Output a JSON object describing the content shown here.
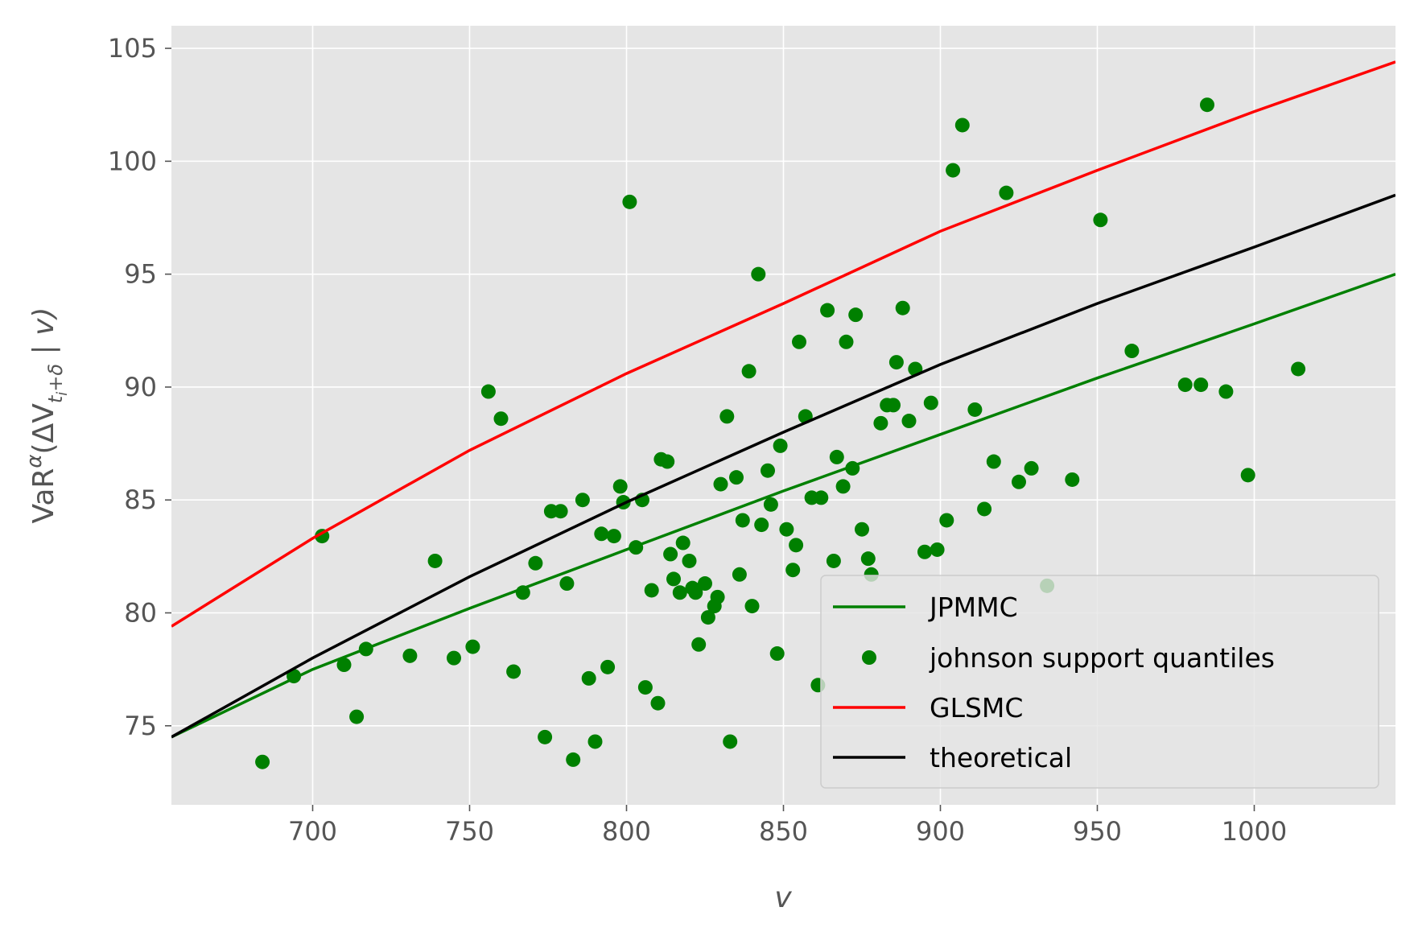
{
  "chart_data": {
    "type": "scatter",
    "xlabel": "v",
    "ylabel_parts": {
      "prefix": "VaR",
      "sup": "α",
      "open": "(ΔV",
      "sub_t": "t",
      "sub_i": "i",
      "sub_rest": "+δ",
      "close": " | v)"
    },
    "xlim": [
      655,
      1045
    ],
    "ylim": [
      71.5,
      106
    ],
    "xticks": [
      700,
      750,
      800,
      850,
      900,
      950,
      1000
    ],
    "yticks": [
      75,
      80,
      85,
      90,
      95,
      100,
      105
    ],
    "grid": true,
    "legend_position": "lower-right",
    "colors": {
      "jpmmc": "#008000",
      "scatter": "#008000",
      "glsmc": "#ff0000",
      "theoretical": "#000000"
    },
    "series": [
      {
        "name": "JPMMC",
        "kind": "line",
        "color": "#008000",
        "x": [
          655,
          700,
          750,
          800,
          850,
          900,
          950,
          1000,
          1045
        ],
        "y": [
          74.5,
          77.5,
          80.2,
          82.8,
          85.4,
          87.9,
          90.4,
          92.8,
          95.0
        ]
      },
      {
        "name": "johnson support quantiles",
        "kind": "scatter",
        "color": "#008000",
        "points": [
          [
            684,
            73.4
          ],
          [
            694,
            77.2
          ],
          [
            703,
            83.4
          ],
          [
            710,
            77.7
          ],
          [
            714,
            75.4
          ],
          [
            717,
            78.4
          ],
          [
            731,
            78.1
          ],
          [
            739,
            82.3
          ],
          [
            745,
            78.0
          ],
          [
            751,
            78.5
          ],
          [
            756,
            89.8
          ],
          [
            760,
            88.6
          ],
          [
            764,
            77.4
          ],
          [
            767,
            80.9
          ],
          [
            771,
            82.2
          ],
          [
            774,
            74.5
          ],
          [
            776,
            84.5
          ],
          [
            779,
            84.5
          ],
          [
            781,
            81.3
          ],
          [
            783,
            73.5
          ],
          [
            786,
            85.0
          ],
          [
            788,
            77.1
          ],
          [
            790,
            74.3
          ],
          [
            792,
            83.5
          ],
          [
            794,
            77.6
          ],
          [
            796,
            83.4
          ],
          [
            798,
            85.6
          ],
          [
            799,
            84.9
          ],
          [
            801,
            98.2
          ],
          [
            803,
            82.9
          ],
          [
            805,
            85.0
          ],
          [
            806,
            76.7
          ],
          [
            808,
            81.0
          ],
          [
            810,
            76.0
          ],
          [
            811,
            86.8
          ],
          [
            813,
            86.7
          ],
          [
            814,
            82.6
          ],
          [
            815,
            81.5
          ],
          [
            817,
            80.9
          ],
          [
            818,
            83.1
          ],
          [
            820,
            82.3
          ],
          [
            821,
            81.1
          ],
          [
            822,
            80.9
          ],
          [
            823,
            78.6
          ],
          [
            825,
            81.3
          ],
          [
            826,
            79.8
          ],
          [
            828,
            80.3
          ],
          [
            829,
            80.7
          ],
          [
            830,
            85.7
          ],
          [
            832,
            88.7
          ],
          [
            833,
            74.3
          ],
          [
            835,
            86.0
          ],
          [
            836,
            81.7
          ],
          [
            837,
            84.1
          ],
          [
            839,
            90.7
          ],
          [
            840,
            80.3
          ],
          [
            842,
            95.0
          ],
          [
            843,
            83.9
          ],
          [
            845,
            86.3
          ],
          [
            846,
            84.8
          ],
          [
            848,
            78.2
          ],
          [
            849,
            87.4
          ],
          [
            851,
            83.7
          ],
          [
            853,
            81.9
          ],
          [
            854,
            83.0
          ],
          [
            855,
            92.0
          ],
          [
            857,
            88.7
          ],
          [
            859,
            85.1
          ],
          [
            861,
            76.8
          ],
          [
            862,
            85.1
          ],
          [
            864,
            93.4
          ],
          [
            866,
            82.3
          ],
          [
            867,
            86.9
          ],
          [
            869,
            85.6
          ],
          [
            870,
            92.0
          ],
          [
            872,
            86.4
          ],
          [
            873,
            93.2
          ],
          [
            875,
            83.7
          ],
          [
            877,
            82.4
          ],
          [
            878,
            81.7
          ],
          [
            881,
            88.4
          ],
          [
            883,
            89.2
          ],
          [
            885,
            89.2
          ],
          [
            886,
            91.1
          ],
          [
            888,
            93.5
          ],
          [
            890,
            88.5
          ],
          [
            892,
            90.8
          ],
          [
            895,
            82.7
          ],
          [
            897,
            89.3
          ],
          [
            899,
            82.8
          ],
          [
            902,
            84.1
          ],
          [
            904,
            99.6
          ],
          [
            907,
            101.6
          ],
          [
            911,
            89.0
          ],
          [
            914,
            84.6
          ],
          [
            917,
            86.7
          ],
          [
            921,
            98.6
          ],
          [
            925,
            85.8
          ],
          [
            929,
            86.4
          ],
          [
            934,
            81.2
          ],
          [
            942,
            85.9
          ],
          [
            951,
            97.4
          ],
          [
            961,
            91.6
          ],
          [
            978,
            90.1
          ],
          [
            983,
            90.1
          ],
          [
            985,
            102.5
          ],
          [
            991,
            89.8
          ],
          [
            998,
            86.1
          ],
          [
            1014,
            90.8
          ]
        ]
      },
      {
        "name": "GLSMC",
        "kind": "line",
        "color": "#ff0000",
        "x": [
          655,
          700,
          750,
          800,
          850,
          900,
          950,
          1000,
          1045
        ],
        "y": [
          79.4,
          83.3,
          87.2,
          90.6,
          93.7,
          96.9,
          99.6,
          102.2,
          104.4
        ]
      },
      {
        "name": "theoretical",
        "kind": "line",
        "color": "#000000",
        "x": [
          655,
          700,
          750,
          800,
          850,
          900,
          950,
          1000,
          1045
        ],
        "y": [
          74.5,
          78.0,
          81.6,
          84.9,
          88.0,
          91.0,
          93.7,
          96.2,
          98.5
        ]
      }
    ]
  }
}
